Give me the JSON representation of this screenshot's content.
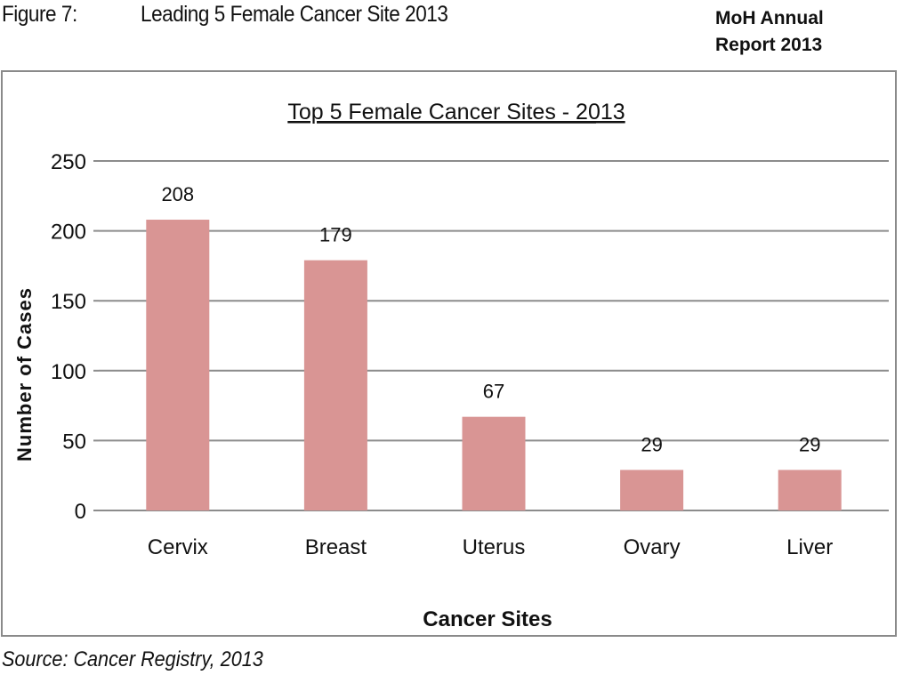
{
  "header": {
    "figure_label": "Figure 7:",
    "figure_title": "Leading 5 Female Cancer Site 2013",
    "report_line1": "MoH Annual",
    "report_line2": "Report 2013"
  },
  "footer": {
    "source": "Source: Cancer Registry, 2013"
  },
  "colors": {
    "bar": "#D99594",
    "grid": "#8C8C8C",
    "text": "#111111"
  },
  "chart_data": {
    "type": "bar",
    "title": "Top 5 Female Cancer Sites - 2013",
    "xlabel": "Cancer Sites",
    "ylabel": "Number of Cases",
    "categories": [
      "Cervix",
      "Breast",
      "Uterus",
      "Ovary",
      "Liver"
    ],
    "values": [
      208,
      179,
      67,
      29,
      29
    ],
    "data_labels": [
      "208",
      "179",
      "67",
      "29",
      "29"
    ],
    "ylim": [
      0,
      250
    ],
    "yticks": [
      0,
      50,
      100,
      150,
      200,
      250
    ],
    "grid": true,
    "legend": "none"
  }
}
